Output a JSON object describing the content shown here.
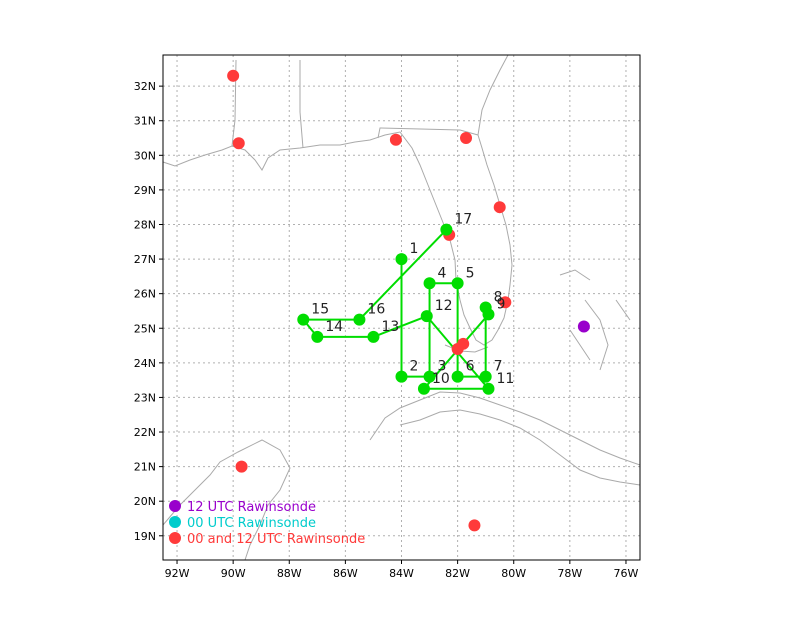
{
  "map": {
    "lon_range": [
      -92.5,
      -75.5
    ],
    "lat_range": [
      18.3,
      32.9
    ],
    "lon_ticks": [
      {
        "lon": -92,
        "label": "92W"
      },
      {
        "lon": -90,
        "label": "90W"
      },
      {
        "lon": -88,
        "label": "88W"
      },
      {
        "lon": -86,
        "label": "86W"
      },
      {
        "lon": -84,
        "label": "84W"
      },
      {
        "lon": -82,
        "label": "82W"
      },
      {
        "lon": -80,
        "label": "80W"
      },
      {
        "lon": -78,
        "label": "78W"
      },
      {
        "lon": -76,
        "label": "76W"
      }
    ],
    "lat_ticks": [
      {
        "lat": 19,
        "label": "19N"
      },
      {
        "lat": 20,
        "label": "20N"
      },
      {
        "lat": 21,
        "label": "21N"
      },
      {
        "lat": 22,
        "label": "22N"
      },
      {
        "lat": 23,
        "label": "23N"
      },
      {
        "lat": 24,
        "label": "24N"
      },
      {
        "lat": 25,
        "label": "25N"
      },
      {
        "lat": 26,
        "label": "26N"
      },
      {
        "lat": 27,
        "label": "27N"
      },
      {
        "lat": 28,
        "label": "28N"
      },
      {
        "lat": 29,
        "label": "29N"
      },
      {
        "lat": 30,
        "label": "30N"
      },
      {
        "lat": 31,
        "label": "31N"
      },
      {
        "lat": 32,
        "label": "32N"
      }
    ],
    "grid": true
  },
  "colors": {
    "track": "#00dd00",
    "coast": "#aaaaaa",
    "grid": "#b0b0b0",
    "rawin_12": "#9900cc",
    "rawin_00": "#00cccc",
    "rawin_both": "#ff3a3a"
  },
  "track_points": [
    {
      "label": "1",
      "lon": -84.0,
      "lat": 27.0
    },
    {
      "label": "2",
      "lon": -84.0,
      "lat": 23.6
    },
    {
      "label": "3",
      "lon": -83.0,
      "lat": 23.6
    },
    {
      "label": "4",
      "lon": -83.0,
      "lat": 26.3
    },
    {
      "label": "5",
      "lon": -82.0,
      "lat": 26.3
    },
    {
      "label": "6",
      "lon": -82.0,
      "lat": 23.6
    },
    {
      "label": "7",
      "lon": -81.0,
      "lat": 23.6
    },
    {
      "label": "8",
      "lon": -81.0,
      "lat": 25.6
    },
    {
      "label": "9",
      "lon": -80.9,
      "lat": 25.4
    },
    {
      "label": "10",
      "lon": -83.2,
      "lat": 23.25
    },
    {
      "label": "11",
      "lon": -80.9,
      "lat": 23.25
    },
    {
      "label": "12",
      "lon": -83.1,
      "lat": 25.35
    },
    {
      "label": "13",
      "lon": -85.0,
      "lat": 24.75
    },
    {
      "label": "14",
      "lon": -87.0,
      "lat": 24.75
    },
    {
      "label": "15",
      "lon": -87.5,
      "lat": 25.25
    },
    {
      "label": "16",
      "lon": -85.5,
      "lat": 25.25
    },
    {
      "label": "17",
      "lon": -82.4,
      "lat": 27.85
    }
  ],
  "rawinsondes_both": [
    {
      "lon": -90.0,
      "lat": 32.3
    },
    {
      "lon": -89.8,
      "lat": 30.35
    },
    {
      "lon": -84.2,
      "lat": 30.45
    },
    {
      "lon": -81.7,
      "lat": 30.5
    },
    {
      "lon": -80.5,
      "lat": 28.5
    },
    {
      "lon": -82.3,
      "lat": 27.7
    },
    {
      "lon": -80.3,
      "lat": 25.75
    },
    {
      "lon": -81.8,
      "lat": 24.55
    },
    {
      "lon": -82.0,
      "lat": 24.4
    },
    {
      "lon": -89.7,
      "lat": 21.0
    },
    {
      "lon": -81.4,
      "lat": 19.3
    }
  ],
  "rawinsondes_12utc": [
    {
      "lon": -77.5,
      "lat": 25.05
    }
  ],
  "legend": [
    {
      "label": "12 UTC Rawinsonde",
      "color": "#9900cc"
    },
    {
      "label": "00 UTC Rawinsonde",
      "color": "#00cccc"
    },
    {
      "label": "00 and 12 UTC Rawinsonde",
      "color": "#ff3a3a"
    }
  ]
}
